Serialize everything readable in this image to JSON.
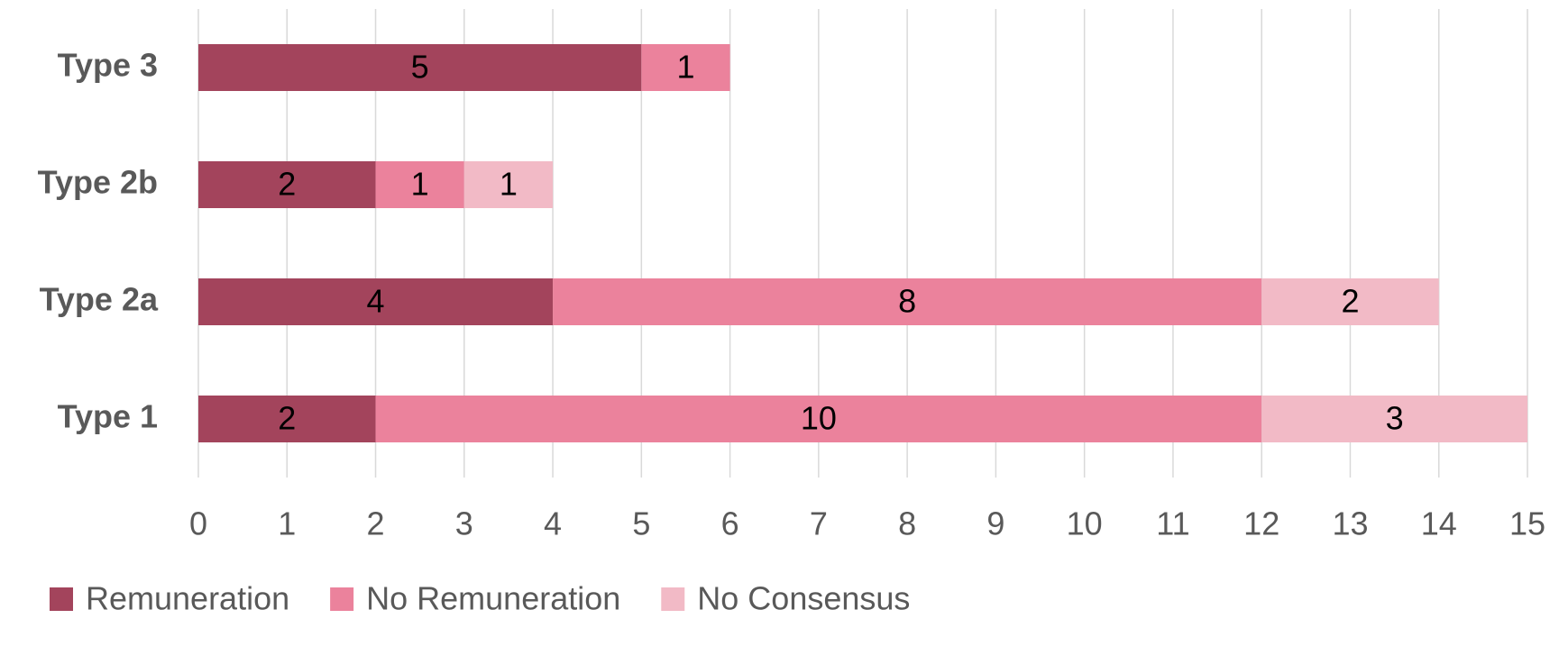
{
  "chart_data": {
    "type": "stacked_barh",
    "categories": [
      "Type 1",
      "Type 2a",
      "Type 2b",
      "Type 3"
    ],
    "series": [
      {
        "name": "Remuneration",
        "color": "#a3445c",
        "values": [
          2,
          4,
          2,
          5
        ]
      },
      {
        "name": "No Remuneration",
        "color": "#eb829c",
        "values": [
          10,
          8,
          1,
          1
        ]
      },
      {
        "name": "No Consensus",
        "color": "#f2bac6",
        "values": [
          3,
          2,
          1,
          null
        ]
      }
    ],
    "xlim": [
      0,
      15
    ],
    "xticks": [
      0,
      1,
      2,
      3,
      4,
      5,
      6,
      7,
      8,
      9,
      10,
      11,
      12,
      13,
      14,
      15
    ],
    "grid": true,
    "legend": "bottom"
  }
}
